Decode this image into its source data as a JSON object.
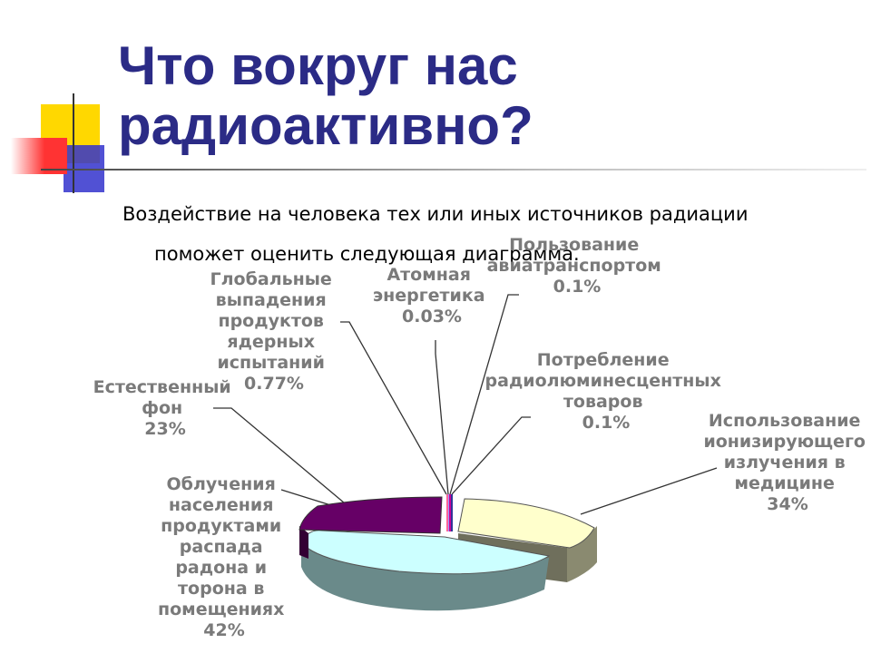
{
  "slide": {
    "title_line1": "Что вокруг нас",
    "title_line2": "радиоактивно?",
    "subtitle_line1": "Воздействие на человека тех или иных источников радиации",
    "subtitle_line2": "поможет оценить следующая диаграмма."
  },
  "colors": {
    "title": "#2b2b86",
    "deco_yellow": "#ffd800",
    "deco_red": "#ff3333",
    "deco_blue": "#3333cc"
  },
  "chart_data": {
    "type": "pie",
    "style": "3d-exploded",
    "series": [
      {
        "label_lines": [
          "Использование",
          "ионизирующего",
          "излучения в",
          "медицине",
          "34%"
        ],
        "value": 34,
        "color": "#ffffcc"
      },
      {
        "label_lines": [
          "Облучения",
          "населения",
          "продуктами",
          "распада",
          "радона и",
          "торона в",
          "помещениях",
          "42%"
        ],
        "value": 42,
        "color": "#ccffff"
      },
      {
        "label_lines": [
          "Естественный",
          "фон",
          "23%"
        ],
        "value": 23,
        "color": "#660066"
      },
      {
        "label_lines": [
          "Глобальные",
          "выпадения",
          "продуктов",
          "ядерных",
          "испытаний",
          "0.77%"
        ],
        "value": 0.77,
        "color": "#ff6699"
      },
      {
        "label_lines": [
          "Атомная",
          "энергетика",
          "0.03%"
        ],
        "value": 0.03,
        "color": "#9999ff"
      },
      {
        "label_lines": [
          "Пользование",
          "авиатранспортом",
          "0.1%"
        ],
        "value": 0.1,
        "color": "#cc0099"
      },
      {
        "label_lines": [
          "Потребление",
          "радиолюминесцентных",
          "товаров",
          "0.1%"
        ],
        "value": 0.1,
        "color": "#333399"
      }
    ]
  }
}
